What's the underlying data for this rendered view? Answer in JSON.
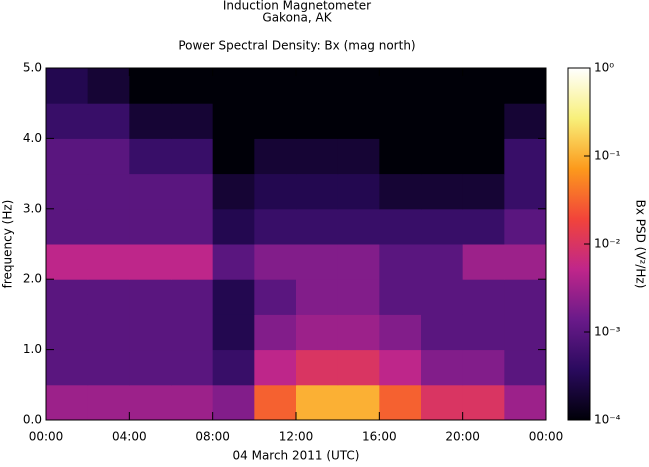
{
  "chart_data": {
    "type": "heatmap",
    "title": "Induction Magnetometer",
    "subtitle": "Gakona, AK",
    "plot_title": "Power Spectral Density: Bx (mag north)",
    "xlabel": "04 March 2011 (UTC)",
    "ylabel": "frequency (Hz)",
    "zlabel": "Bx PSD (V²/Hz)",
    "x": [
      1,
      3,
      5,
      7,
      9,
      11,
      13,
      15,
      17,
      19,
      21,
      23
    ],
    "y": [
      0.25,
      0.75,
      1.25,
      1.75,
      2.25,
      2.75,
      3.25,
      3.75,
      4.25,
      4.75
    ],
    "z": [
      [
        0.003,
        0.003,
        0.003,
        0.003,
        0.002,
        0.03,
        0.1,
        0.1,
        0.03,
        0.01,
        0.01,
        0.003
      ],
      [
        0.001,
        0.001,
        0.001,
        0.001,
        0.0005,
        0.005,
        0.01,
        0.01,
        0.005,
        0.002,
        0.002,
        0.001
      ],
      [
        0.001,
        0.001,
        0.001,
        0.001,
        0.0003,
        0.002,
        0.003,
        0.003,
        0.002,
        0.001,
        0.001,
        0.001
      ],
      [
        0.001,
        0.001,
        0.001,
        0.001,
        0.0003,
        0.001,
        0.002,
        0.002,
        0.001,
        0.001,
        0.001,
        0.001
      ],
      [
        0.005,
        0.005,
        0.005,
        0.005,
        0.001,
        0.002,
        0.002,
        0.002,
        0.001,
        0.001,
        0.003,
        0.003
      ],
      [
        0.001,
        0.001,
        0.001,
        0.001,
        0.0003,
        0.0005,
        0.0005,
        0.0005,
        0.0005,
        0.0005,
        0.0005,
        0.001
      ],
      [
        0.001,
        0.001,
        0.001,
        0.001,
        0.0002,
        0.0003,
        0.0003,
        0.0003,
        0.0002,
        0.0002,
        0.0002,
        0.0005
      ],
      [
        0.001,
        0.001,
        0.0005,
        0.0005,
        0.0001,
        0.0002,
        0.0002,
        0.0002,
        0.0001,
        0.0001,
        0.0001,
        0.0005
      ],
      [
        0.0005,
        0.0005,
        0.0002,
        0.0002,
        0.0001,
        0.0001,
        0.0001,
        0.0001,
        0.0001,
        0.0001,
        0.0001,
        0.0002
      ],
      [
        0.0003,
        0.0002,
        0.0001,
        0.0001,
        0.0001,
        0.0001,
        0.0001,
        0.0001,
        0.0001,
        0.0001,
        0.0001,
        0.0001
      ]
    ],
    "xlim": [
      0,
      24
    ],
    "xticks": [
      {
        "value": 0,
        "label": "00:00"
      },
      {
        "value": 4,
        "label": "04:00"
      },
      {
        "value": 8,
        "label": "08:00"
      },
      {
        "value": 12,
        "label": "12:00"
      },
      {
        "value": 16,
        "label": "16:00"
      },
      {
        "value": 20,
        "label": "20:00"
      },
      {
        "value": 24,
        "label": "00:00"
      }
    ],
    "ylim": [
      0,
      5
    ],
    "yticks": [
      {
        "value": 0,
        "label": "0.0"
      },
      {
        "value": 1,
        "label": "1.0"
      },
      {
        "value": 2,
        "label": "2.0"
      },
      {
        "value": 3,
        "label": "3.0"
      },
      {
        "value": 4,
        "label": "4.0"
      },
      {
        "value": 5,
        "label": "5.0"
      }
    ],
    "zlim": [
      0.0001,
      1
    ],
    "zscale": "log",
    "zticks": [
      {
        "value": 0.0001,
        "label": "10⁻⁴"
      },
      {
        "value": 0.001,
        "label": "10⁻³"
      },
      {
        "value": 0.01,
        "label": "10⁻²"
      },
      {
        "value": 0.1,
        "label": "10⁻¹"
      },
      {
        "value": 1,
        "label": "10⁰"
      }
    ],
    "colormap": [
      "#000008",
      "#2a0a5e",
      "#6a1a8a",
      "#c0268a",
      "#f2443a",
      "#fc9a1c",
      "#f8f07a",
      "#ffffff"
    ]
  }
}
